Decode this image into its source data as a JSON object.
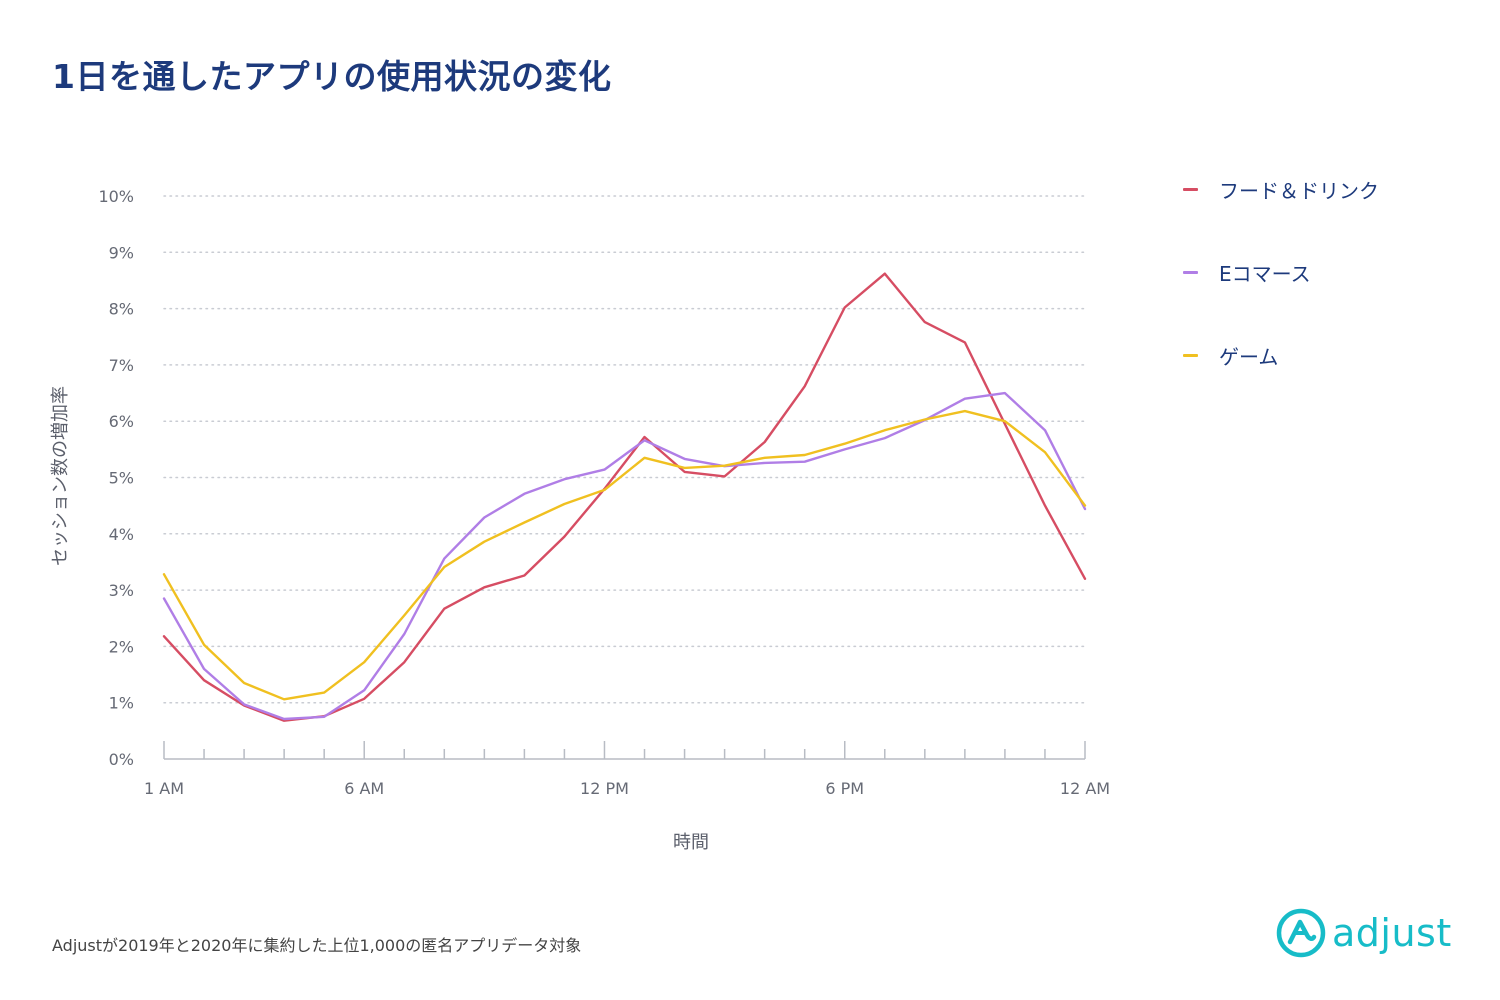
{
  "title": "1日を通したアプリの使用状況の変化",
  "footnote": "Adjustが2019年と2020年に集約した上位1,000の匿名アプリデータ対象",
  "logo": {
    "text": "adjust",
    "icon": "adjust-logo-icon",
    "color": "#17bcc8"
  },
  "colors": {
    "title": "#1d3a7c",
    "grid": "#c9ccd3",
    "axis": "#b8bcc4",
    "tick_text": "#666a75"
  },
  "legend": [
    {
      "label": "フード＆ドリンク",
      "color": "#d64d63"
    },
    {
      "label": "Eコマース",
      "color": "#b07ee6"
    },
    {
      "label": "ゲーム",
      "color": "#f0c020"
    }
  ],
  "chart_data": {
    "type": "line",
    "title": "1日を通したアプリの使用状況の変化",
    "xlabel": "時間",
    "ylabel": "セッション数の増加率",
    "ylim": [
      0,
      10
    ],
    "yticks": [
      "0%",
      "1%",
      "2%",
      "3%",
      "4%",
      "5%",
      "6%",
      "7%",
      "8%",
      "9%",
      "10%"
    ],
    "xtick_labels": [
      "1 AM",
      "6 AM",
      "12 PM",
      "6 PM",
      "12 AM"
    ],
    "xtick_label_index": [
      0,
      5,
      11,
      17,
      23
    ],
    "x_count": 24,
    "grid": true,
    "legend_position": "right",
    "series": [
      {
        "name": "フード＆ドリンク",
        "color": "#d64d63",
        "values": [
          2.18,
          1.4,
          0.95,
          0.68,
          0.76,
          1.07,
          1.72,
          2.67,
          3.05,
          3.26,
          3.95,
          4.8,
          5.72,
          5.1,
          5.02,
          5.63,
          6.62,
          8.02,
          8.62,
          7.76,
          7.4,
          5.95,
          4.5,
          3.2
        ]
      },
      {
        "name": "Eコマース",
        "color": "#b07ee6",
        "values": [
          2.85,
          1.6,
          0.97,
          0.71,
          0.75,
          1.22,
          2.22,
          3.56,
          4.29,
          4.71,
          4.97,
          5.14,
          5.66,
          5.33,
          5.2,
          5.26,
          5.28,
          5.5,
          5.7,
          6.02,
          6.4,
          6.5,
          5.84,
          4.44
        ]
      },
      {
        "name": "ゲーム",
        "color": "#f0c020",
        "values": [
          3.28,
          2.03,
          1.35,
          1.06,
          1.18,
          1.72,
          2.55,
          3.41,
          3.86,
          4.2,
          4.53,
          4.78,
          5.35,
          5.17,
          5.21,
          5.35,
          5.4,
          5.6,
          5.84,
          6.03,
          6.18,
          6.0,
          5.45,
          4.5
        ]
      }
    ]
  }
}
